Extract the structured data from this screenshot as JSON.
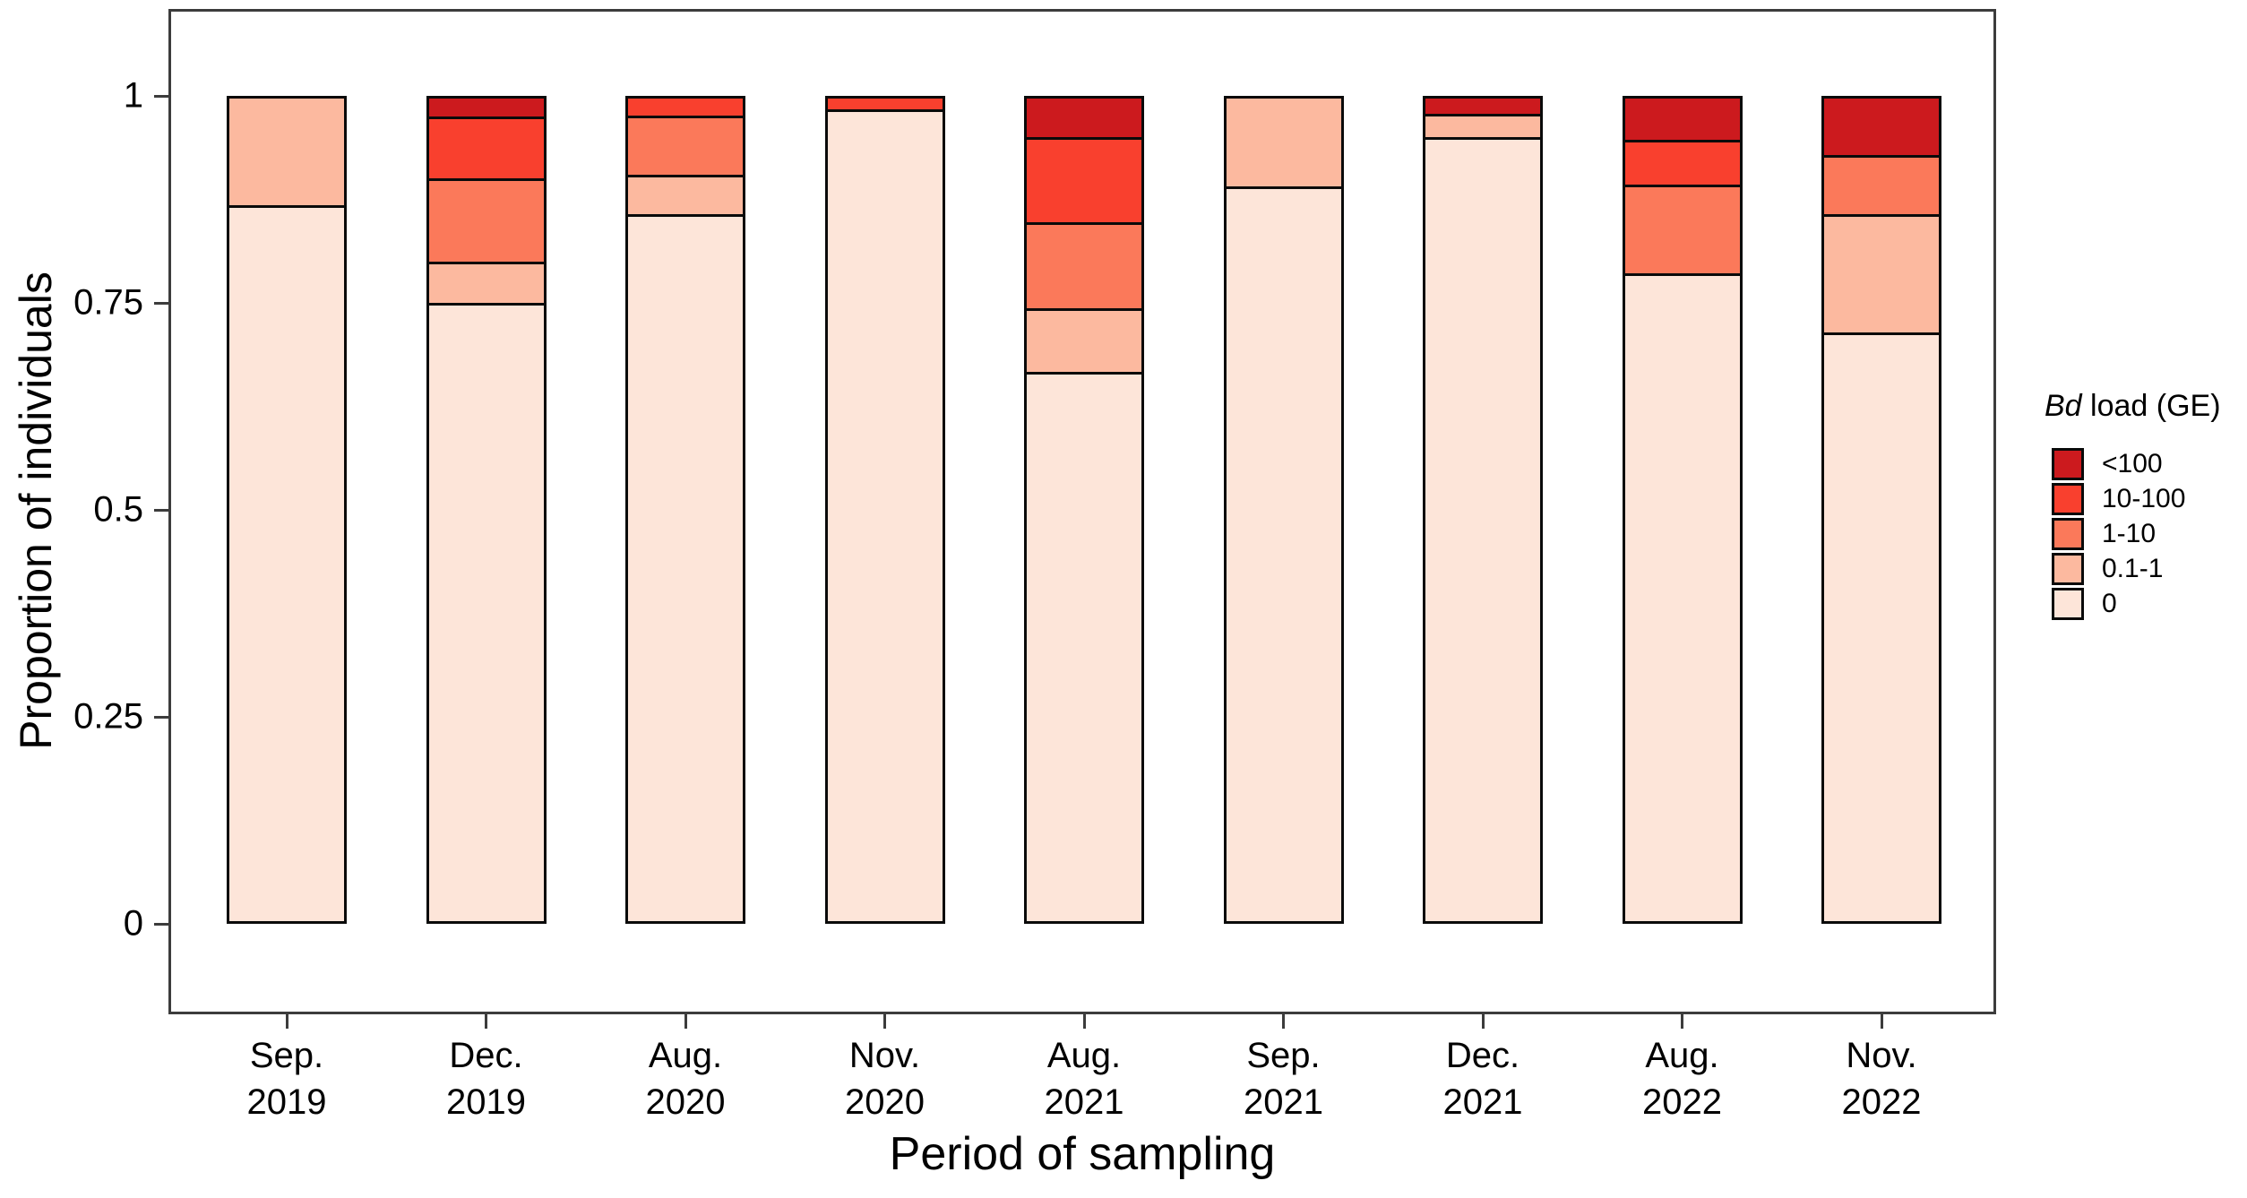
{
  "chart_data": {
    "type": "bar",
    "stacked": true,
    "title": "",
    "xlabel": "Period of sampling",
    "ylabel": "Proportion of individuals",
    "ylim": [
      0,
      1
    ],
    "grid": false,
    "legend_position": "right",
    "categories": [
      "Sep. 2019",
      "Dec. 2019",
      "Aug. 2020",
      "Nov. 2020",
      "Aug. 2021",
      "Sep. 2021",
      "Dec. 2021",
      "Aug. 2022",
      "Nov. 2022"
    ],
    "y_ticks": [
      "0",
      "0.25",
      "0.5",
      "0.75",
      "1"
    ],
    "series": [
      {
        "name": "0",
        "color": "#FDE5D9",
        "values": [
          0.868,
          0.75,
          0.857,
          0.984,
          0.667,
          0.891,
          0.95,
          0.786,
          0.714
        ]
      },
      {
        "name": "0.1-1",
        "color": "#FCB99F",
        "values": [
          0.132,
          0.05,
          0.048,
          0.0,
          0.077,
          0.109,
          0.028,
          0.0,
          0.143
        ]
      },
      {
        "name": "1-10",
        "color": "#FB795A",
        "values": [
          0.0,
          0.1,
          0.071,
          0.0,
          0.103,
          0.0,
          0.0,
          0.107,
          0.072
        ]
      },
      {
        "name": "10-100",
        "color": "#F9402E",
        "values": [
          0.0,
          0.075,
          0.024,
          0.016,
          0.103,
          0.0,
          0.0,
          0.054,
          0.0
        ]
      },
      {
        "name": "<100",
        "color": "#CC1A1E",
        "values": [
          0.0,
          0.025,
          0.0,
          0.0,
          0.05,
          0.0,
          0.022,
          0.053,
          0.071
        ]
      }
    ],
    "legend": {
      "title_italic": "Bd",
      "title_rest": " load (GE)",
      "entries": [
        {
          "label": "<100",
          "color": "#CC1A1E"
        },
        {
          "label": "10-100",
          "color": "#F9402E"
        },
        {
          "label": "1-10",
          "color": "#FB795A"
        },
        {
          "label": "0.1-1",
          "color": "#FCB99F"
        },
        {
          "label": "0",
          "color": "#FDE5D9"
        }
      ]
    }
  }
}
